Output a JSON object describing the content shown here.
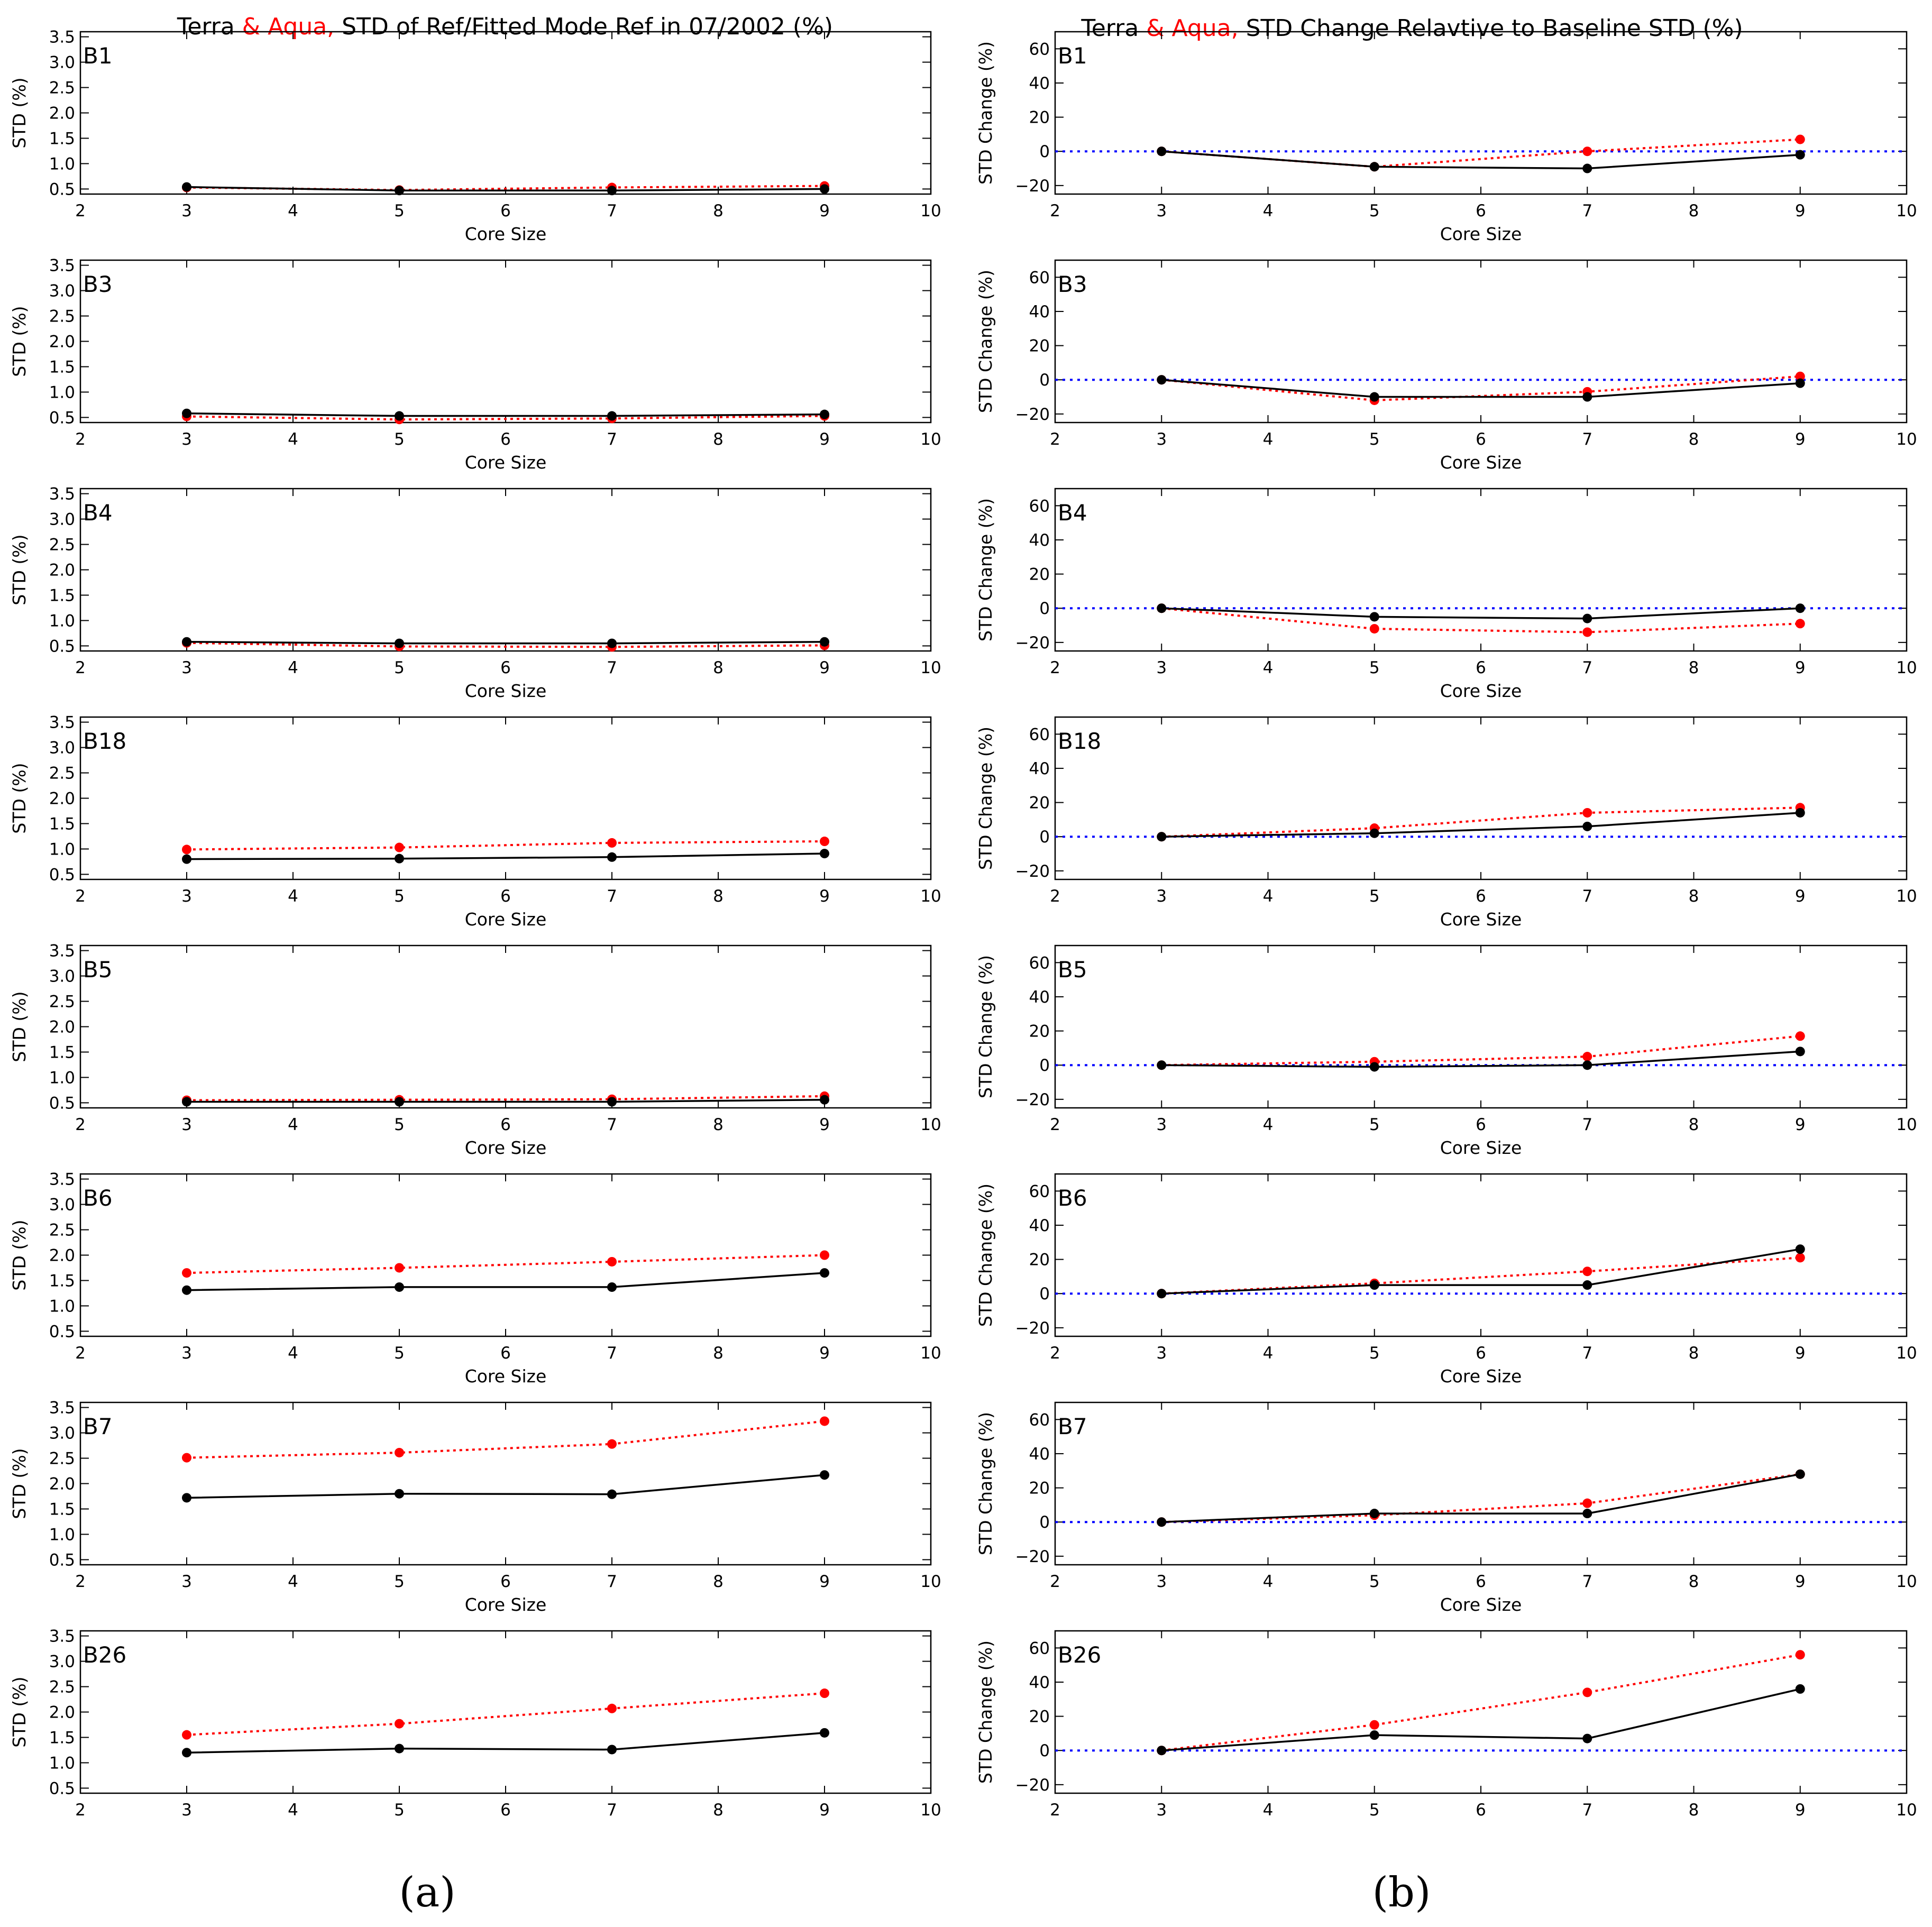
{
  "colors": {
    "terra": "#000000",
    "aqua": "#ff0000",
    "baseline": "#0000ff"
  },
  "panels": {
    "a": {
      "title_terra": "Terra",
      "title_aqua": "& Aqua,",
      "title_rest": "STD of Ref/Fitted Mode Ref in 07/2002 (%)",
      "caption": "(a)"
    },
    "b": {
      "title_terra": "Terra",
      "title_aqua": "& Aqua,",
      "title_rest": "STD Change Relavtive to Baseline STD (%)",
      "caption": "(b)"
    }
  },
  "chart_data": [
    {
      "panel": "a",
      "type": "line",
      "xlabel": "Core Size",
      "ylabel": "STD (%)",
      "xlim": [
        2,
        10
      ],
      "ylim": [
        0.4,
        3.6
      ],
      "xticks": [
        "2",
        "3",
        "4",
        "5",
        "6",
        "7",
        "8",
        "9",
        "10"
      ],
      "yticks": [
        "0.5",
        "1.0",
        "1.5",
        "2.0",
        "2.5",
        "3.0",
        "3.5"
      ],
      "x": [
        3,
        5,
        7,
        9
      ],
      "bands": [
        {
          "name": "B1",
          "xlabel": "Core Size",
          "series": [
            {
              "name": "Terra",
              "values": [
                0.54,
                0.47,
                0.47,
                0.5
              ]
            },
            {
              "name": "Aqua",
              "values": [
                0.53,
                0.48,
                0.53,
                0.56
              ]
            }
          ]
        },
        {
          "name": "B3",
          "xlabel": "Core Size",
          "series": [
            {
              "name": "Terra",
              "values": [
                0.58,
                0.53,
                0.53,
                0.56
              ]
            },
            {
              "name": "Aqua",
              "values": [
                0.52,
                0.46,
                0.48,
                0.53
              ]
            }
          ]
        },
        {
          "name": "B4",
          "xlabel": "Core Size",
          "series": [
            {
              "name": "Terra",
              "values": [
                0.58,
                0.55,
                0.55,
                0.58
              ]
            },
            {
              "name": "Aqua",
              "values": [
                0.56,
                0.49,
                0.48,
                0.51
              ]
            }
          ]
        },
        {
          "name": "B18",
          "xlabel": "Core Size",
          "series": [
            {
              "name": "Terra",
              "values": [
                0.8,
                0.81,
                0.84,
                0.91
              ]
            },
            {
              "name": "Aqua",
              "values": [
                0.99,
                1.03,
                1.12,
                1.15
              ]
            }
          ]
        },
        {
          "name": "B5",
          "xlabel": "Core Size",
          "series": [
            {
              "name": "Terra",
              "values": [
                0.52,
                0.52,
                0.52,
                0.56
              ]
            },
            {
              "name": "Aqua",
              "values": [
                0.55,
                0.56,
                0.57,
                0.63
              ]
            }
          ]
        },
        {
          "name": "B6",
          "xlabel": "Core Size",
          "series": [
            {
              "name": "Terra",
              "values": [
                1.31,
                1.37,
                1.37,
                1.65
              ]
            },
            {
              "name": "Aqua",
              "values": [
                1.65,
                1.75,
                1.87,
                2.0
              ]
            }
          ]
        },
        {
          "name": "B7",
          "xlabel": "Core Size",
          "series": [
            {
              "name": "Terra",
              "values": [
                1.72,
                1.8,
                1.79,
                2.17
              ]
            },
            {
              "name": "Aqua",
              "values": [
                2.51,
                2.61,
                2.78,
                3.23
              ]
            }
          ]
        },
        {
          "name": "B26",
          "xlabel": "",
          "series": [
            {
              "name": "Terra",
              "values": [
                1.2,
                1.28,
                1.26,
                1.59
              ]
            },
            {
              "name": "Aqua",
              "values": [
                1.55,
                1.77,
                2.07,
                2.37
              ]
            }
          ]
        }
      ]
    },
    {
      "panel": "b",
      "type": "line",
      "xlabel": "Core Size",
      "ylabel": "STD Change (%)",
      "xlim": [
        2,
        10
      ],
      "ylim": [
        -25,
        70
      ],
      "xticks": [
        "2",
        "3",
        "4",
        "5",
        "6",
        "7",
        "8",
        "9",
        "10"
      ],
      "yticks": [
        "−20",
        "0",
        "20",
        "40",
        "60"
      ],
      "baseline": 0,
      "x": [
        3,
        5,
        7,
        9
      ],
      "bands": [
        {
          "name": "B1",
          "xlabel": "Core Size",
          "series": [
            {
              "name": "Terra",
              "values": [
                0,
                -9,
                -10,
                -2
              ]
            },
            {
              "name": "Aqua",
              "values": [
                0,
                -9,
                0,
                7
              ]
            }
          ]
        },
        {
          "name": "B3",
          "xlabel": "Core Size",
          "series": [
            {
              "name": "Terra",
              "values": [
                0,
                -10,
                -10,
                -2
              ]
            },
            {
              "name": "Aqua",
              "values": [
                0,
                -12,
                -7,
                2
              ]
            }
          ]
        },
        {
          "name": "B4",
          "xlabel": "Core Size",
          "series": [
            {
              "name": "Terra",
              "values": [
                0,
                -5,
                -6,
                0
              ]
            },
            {
              "name": "Aqua",
              "values": [
                0,
                -12,
                -14,
                -9
              ]
            }
          ]
        },
        {
          "name": "B18",
          "xlabel": "Core Size",
          "series": [
            {
              "name": "Terra",
              "values": [
                0,
                2,
                6,
                14
              ]
            },
            {
              "name": "Aqua",
              "values": [
                0,
                5,
                14,
                17
              ]
            }
          ]
        },
        {
          "name": "B5",
          "xlabel": "Core Size",
          "series": [
            {
              "name": "Terra",
              "values": [
                0,
                -1,
                0,
                8
              ]
            },
            {
              "name": "Aqua",
              "values": [
                0,
                2,
                5,
                17
              ]
            }
          ]
        },
        {
          "name": "B6",
          "xlabel": "Core Size",
          "series": [
            {
              "name": "Terra",
              "values": [
                0,
                5,
                5,
                26
              ]
            },
            {
              "name": "Aqua",
              "values": [
                0,
                6,
                13,
                21
              ]
            }
          ]
        },
        {
          "name": "B7",
          "xlabel": "Core Size",
          "series": [
            {
              "name": "Terra",
              "values": [
                0,
                5,
                5,
                28
              ]
            },
            {
              "name": "Aqua",
              "values": [
                0,
                4,
                11,
                28
              ]
            }
          ]
        },
        {
          "name": "B26",
          "xlabel": "",
          "series": [
            {
              "name": "Terra",
              "values": [
                0,
                9,
                7,
                36
              ]
            },
            {
              "name": "Aqua",
              "values": [
                0,
                15,
                34,
                56
              ]
            }
          ]
        }
      ]
    }
  ]
}
